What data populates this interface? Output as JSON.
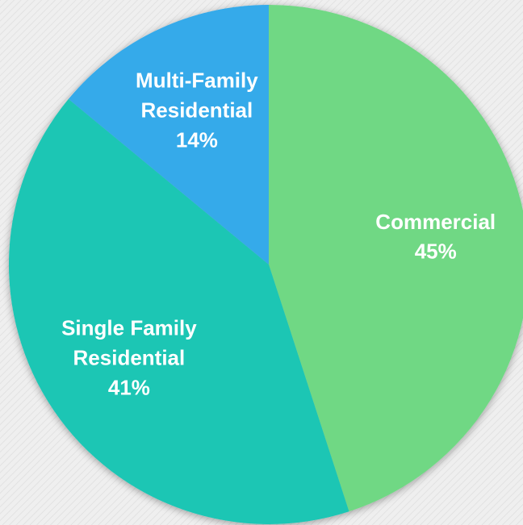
{
  "chart_data": {
    "type": "pie",
    "categories": [
      "Commercial",
      "Single Family\nResidential",
      "Multi-Family\nResidential"
    ],
    "values": [
      45,
      41,
      14
    ],
    "value_labels": [
      "45%",
      "41%",
      "14%"
    ],
    "colors": [
      "#6fd884",
      "#1bc6b4",
      "#35aaea"
    ]
  }
}
